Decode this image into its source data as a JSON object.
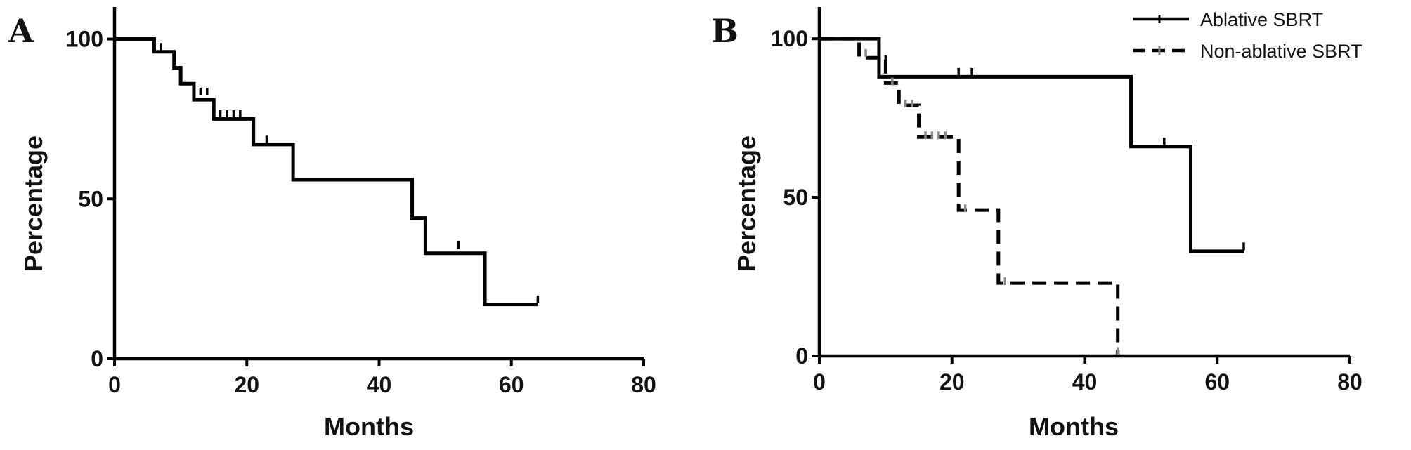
{
  "chart_data": [
    {
      "type": "line",
      "panel": "A",
      "xlabel": "Months",
      "ylabel": "Percentage",
      "xlim": [
        0,
        80
      ],
      "ylim": [
        0,
        110
      ],
      "x_ticks": [
        "0",
        "20",
        "40",
        "60",
        "80"
      ],
      "y_ticks": [
        "0",
        "50",
        "100"
      ],
      "grid": false,
      "series": [
        {
          "name": "",
          "color": "#000000",
          "dash": "solid",
          "steps": [
            [
              0,
              100
            ],
            [
              6,
              96
            ],
            [
              9,
              91
            ],
            [
              10,
              86
            ],
            [
              12,
              81
            ],
            [
              15,
              75
            ],
            [
              21,
              67
            ],
            [
              27,
              56
            ],
            [
              45,
              44
            ],
            [
              47,
              33
            ],
            [
              56,
              17
            ],
            [
              64,
              17
            ]
          ],
          "censored": [
            [
              7,
              97
            ],
            [
              13,
              83
            ],
            [
              14,
              83
            ],
            [
              16,
              76
            ],
            [
              17,
              76
            ],
            [
              18,
              76
            ],
            [
              19,
              76
            ],
            [
              23,
              68
            ],
            [
              52,
              35
            ],
            [
              64,
              18
            ]
          ]
        }
      ]
    },
    {
      "type": "line",
      "panel": "B",
      "xlabel": "Months",
      "ylabel": "Percentage",
      "xlim": [
        0,
        80
      ],
      "ylim": [
        0,
        110
      ],
      "x_ticks": [
        "0",
        "20",
        "40",
        "60",
        "80"
      ],
      "y_ticks": [
        "0",
        "50",
        "100"
      ],
      "grid": false,
      "legend_position": "top-right",
      "series": [
        {
          "name": "Ablative SBRT",
          "color": "#000000",
          "dash": "solid",
          "steps": [
            [
              0,
              100
            ],
            [
              9,
              88
            ],
            [
              47,
              66
            ],
            [
              56,
              33
            ],
            [
              64,
              33
            ]
          ],
          "censored": [
            [
              10,
              93
            ],
            [
              21,
              89
            ],
            [
              23,
              89
            ],
            [
              52,
              67
            ],
            [
              64,
              34
            ]
          ]
        },
        {
          "name": "Non-ablative SBRT",
          "color": "#000000",
          "dash": "dashed",
          "steps": [
            [
              0,
              100
            ],
            [
              6,
              94
            ],
            [
              10,
              86
            ],
            [
              12,
              79
            ],
            [
              15,
              69
            ],
            [
              21,
              46
            ],
            [
              27,
              23
            ],
            [
              45,
              0
            ]
          ],
          "censored": [
            [
              7,
              95
            ],
            [
              11,
              86
            ],
            [
              13,
              79
            ],
            [
              14,
              79
            ],
            [
              16,
              69
            ],
            [
              17,
              69
            ],
            [
              18,
              69
            ],
            [
              19,
              69
            ],
            [
              22,
              46
            ],
            [
              28,
              23
            ],
            [
              45,
              1
            ]
          ]
        }
      ]
    }
  ]
}
